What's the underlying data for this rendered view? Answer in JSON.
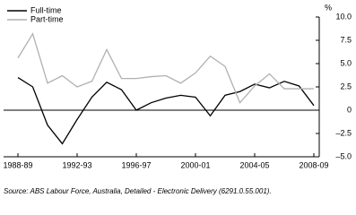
{
  "chart_data": {
    "type": "line",
    "y_unit": "%",
    "categories": [
      "1988-89",
      null,
      null,
      null,
      "1992-93",
      null,
      null,
      null,
      "1996-97",
      null,
      null,
      null,
      "2000-01",
      null,
      null,
      null,
      "2004-05",
      null,
      null,
      null,
      "2008-09"
    ],
    "series": [
      {
        "name": "Full-time",
        "color": "#000000",
        "values": [
          3.5,
          2.5,
          -1.6,
          -3.6,
          -1.0,
          1.4,
          3.0,
          2.2,
          0,
          0.8,
          1.3,
          1.6,
          1.4,
          -0.6,
          1.6,
          2.0,
          2.8,
          2.4,
          3.1,
          2.6,
          0.5
        ]
      },
      {
        "name": "Part-time",
        "color": "#b0b0b0",
        "values": [
          5.6,
          8.2,
          2.9,
          3.7,
          2.5,
          3.1,
          6.5,
          3.4,
          3.4,
          3.6,
          3.7,
          2.9,
          4.0,
          5.8,
          4.7,
          0.8,
          2.6,
          3.9,
          2.3,
          2.3,
          2.3
        ]
      }
    ],
    "ylim": [
      -5,
      10
    ],
    "yticks": [
      {
        "value": 10,
        "label": "10.0"
      },
      7.5,
      {
        "value": 5,
        "label": "5.0"
      },
      2.5,
      0,
      {
        "value": -2.5,
        "label": "–2.5"
      },
      {
        "value": -5,
        "label": "–5.0"
      }
    ],
    "legend": "top-left",
    "source": "Source: ABS Labour Force, Australia, Detailed - Electronic Delivery (6291.0.55.001)."
  }
}
